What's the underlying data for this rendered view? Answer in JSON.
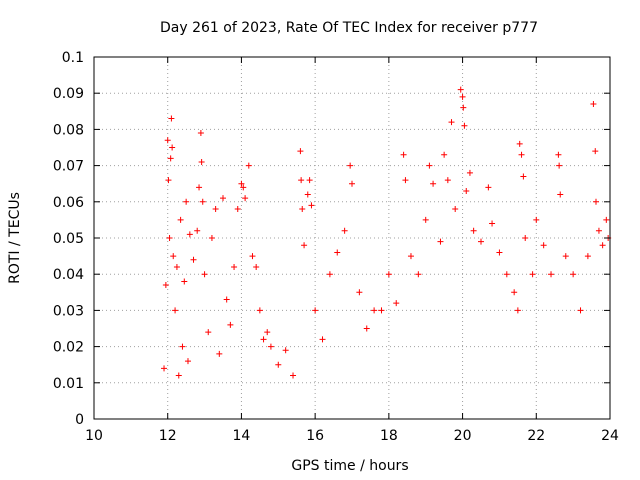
{
  "chart_data": {
    "type": "scatter",
    "title": "Day 261 of 2023, Rate Of TEC Index for receiver p777",
    "xlabel": "GPS time / hours",
    "ylabel": "ROTI / TECUs",
    "xlim": [
      10,
      24
    ],
    "ylim": [
      0,
      0.1
    ],
    "xticks": [
      "10",
      "12",
      "14",
      "16",
      "18",
      "20",
      "22",
      "24"
    ],
    "yticks": [
      "0",
      "0.01",
      "0.02",
      "0.03",
      "0.04",
      "0.05",
      "0.06",
      "0.07",
      "0.08",
      "0.09",
      "0.1"
    ],
    "grid": true,
    "marker": "+",
    "series_color": "#ff0000",
    "series": [
      {
        "values": [
          [
            11.9,
            0.014
          ],
          [
            11.95,
            0.037
          ],
          [
            12.0,
            0.077
          ],
          [
            12.02,
            0.066
          ],
          [
            12.05,
            0.05
          ],
          [
            12.08,
            0.072
          ],
          [
            12.1,
            0.083
          ],
          [
            12.12,
            0.075
          ],
          [
            12.15,
            0.045
          ],
          [
            12.2,
            0.03
          ],
          [
            12.25,
            0.042
          ],
          [
            12.3,
            0.012
          ],
          [
            12.35,
            0.055
          ],
          [
            12.4,
            0.02
          ],
          [
            12.45,
            0.038
          ],
          [
            12.5,
            0.06
          ],
          [
            12.55,
            0.016
          ],
          [
            12.6,
            0.051
          ],
          [
            12.7,
            0.044
          ],
          [
            12.8,
            0.052
          ],
          [
            12.85,
            0.064
          ],
          [
            12.9,
            0.079
          ],
          [
            12.92,
            0.071
          ],
          [
            12.95,
            0.06
          ],
          [
            13.0,
            0.04
          ],
          [
            13.1,
            0.024
          ],
          [
            13.2,
            0.05
          ],
          [
            13.3,
            0.058
          ],
          [
            13.4,
            0.018
          ],
          [
            13.5,
            0.061
          ],
          [
            13.6,
            0.033
          ],
          [
            13.7,
            0.026
          ],
          [
            13.8,
            0.042
          ],
          [
            13.9,
            0.058
          ],
          [
            14.0,
            0.065
          ],
          [
            14.05,
            0.064
          ],
          [
            14.1,
            0.061
          ],
          [
            14.2,
            0.07
          ],
          [
            14.3,
            0.045
          ],
          [
            14.4,
            0.042
          ],
          [
            14.5,
            0.03
          ],
          [
            14.6,
            0.022
          ],
          [
            14.7,
            0.024
          ],
          [
            14.8,
            0.02
          ],
          [
            15.0,
            0.015
          ],
          [
            15.2,
            0.019
          ],
          [
            15.4,
            0.012
          ],
          [
            15.6,
            0.074
          ],
          [
            15.62,
            0.066
          ],
          [
            15.65,
            0.058
          ],
          [
            15.7,
            0.048
          ],
          [
            15.8,
            0.062
          ],
          [
            15.85,
            0.066
          ],
          [
            15.9,
            0.059
          ],
          [
            16.0,
            0.03
          ],
          [
            16.2,
            0.022
          ],
          [
            16.4,
            0.04
          ],
          [
            16.6,
            0.046
          ],
          [
            16.8,
            0.052
          ],
          [
            16.95,
            0.07
          ],
          [
            17.0,
            0.065
          ],
          [
            17.2,
            0.035
          ],
          [
            17.4,
            0.025
          ],
          [
            17.6,
            0.03
          ],
          [
            17.8,
            0.03
          ],
          [
            18.0,
            0.04
          ],
          [
            18.2,
            0.032
          ],
          [
            18.4,
            0.073
          ],
          [
            18.45,
            0.066
          ],
          [
            18.6,
            0.045
          ],
          [
            18.8,
            0.04
          ],
          [
            19.0,
            0.055
          ],
          [
            19.1,
            0.07
          ],
          [
            19.2,
            0.065
          ],
          [
            19.4,
            0.049
          ],
          [
            19.5,
            0.073
          ],
          [
            19.6,
            0.066
          ],
          [
            19.7,
            0.082
          ],
          [
            19.8,
            0.058
          ],
          [
            19.95,
            0.091
          ],
          [
            20.0,
            0.089
          ],
          [
            20.02,
            0.086
          ],
          [
            20.05,
            0.081
          ],
          [
            20.1,
            0.063
          ],
          [
            20.2,
            0.068
          ],
          [
            20.3,
            0.052
          ],
          [
            20.5,
            0.049
          ],
          [
            20.7,
            0.064
          ],
          [
            20.8,
            0.054
          ],
          [
            21.0,
            0.046
          ],
          [
            21.2,
            0.04
          ],
          [
            21.4,
            0.035
          ],
          [
            21.5,
            0.03
          ],
          [
            21.55,
            0.076
          ],
          [
            21.6,
            0.073
          ],
          [
            21.65,
            0.067
          ],
          [
            21.7,
            0.05
          ],
          [
            21.9,
            0.04
          ],
          [
            22.0,
            0.055
          ],
          [
            22.2,
            0.048
          ],
          [
            22.4,
            0.04
          ],
          [
            22.6,
            0.073
          ],
          [
            22.62,
            0.07
          ],
          [
            22.65,
            0.062
          ],
          [
            22.8,
            0.045
          ],
          [
            23.0,
            0.04
          ],
          [
            23.2,
            0.03
          ],
          [
            23.4,
            0.045
          ],
          [
            23.55,
            0.087
          ],
          [
            23.6,
            0.074
          ],
          [
            23.62,
            0.06
          ],
          [
            23.7,
            0.052
          ],
          [
            23.8,
            0.048
          ],
          [
            23.9,
            0.055
          ],
          [
            23.95,
            0.05
          ]
        ]
      }
    ]
  }
}
